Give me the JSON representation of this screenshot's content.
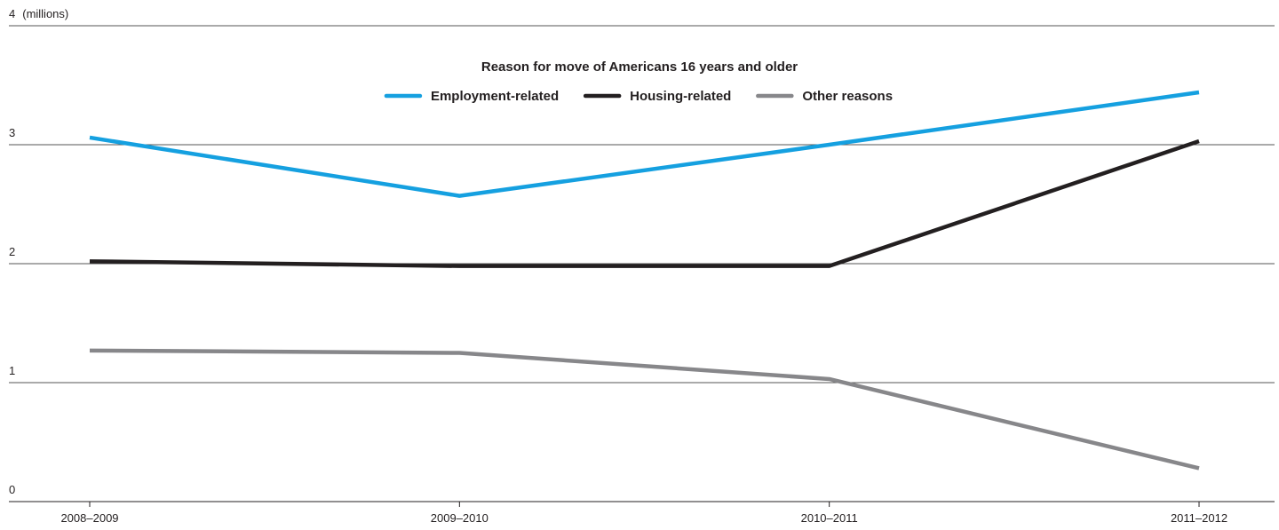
{
  "chart_data": {
    "type": "line",
    "title": "Reason for move of Americans 16 years and older",
    "y_label": "(millions)",
    "categories": [
      "2008–2009",
      "2009–2010",
      "2010–2011",
      "2011–2012"
    ],
    "series": [
      {
        "name": "Employment-related",
        "color": "#15a0e0",
        "values": [
          3.06,
          2.57,
          3.0,
          3.44
        ]
      },
      {
        "name": "Housing-related",
        "color": "#231f20",
        "values": [
          2.02,
          1.98,
          1.98,
          3.03
        ]
      },
      {
        "name": "Other reasons",
        "color": "#87878a",
        "values": [
          1.27,
          1.25,
          1.03,
          0.28
        ]
      }
    ],
    "ylim": [
      0,
      4
    ],
    "yticks": [
      0,
      1,
      2,
      3,
      4
    ],
    "grid": true
  }
}
